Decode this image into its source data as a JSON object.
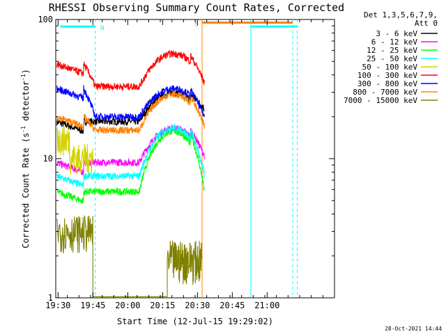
{
  "chart_data": {
    "type": "line",
    "title": "RHESSI Observing Summary Count Rates, Corrected",
    "xlabel": "Start Time (12-Jul-15 19:29:02)",
    "ylabel_pre": "Corrected Count Rate (s",
    "ylabel_sup1": "-1",
    "ylabel_mid": " detector",
    "ylabel_sup2": "-1",
    "ylabel_post": ")",
    "yscale": "log",
    "ylim": [
      1,
      100
    ],
    "xlim_minutes": [
      0,
      120
    ],
    "x_ticks": [
      "19:30",
      "19:45",
      "20:00",
      "20:15",
      "20:30",
      "20:45",
      "21:00"
    ],
    "y_ticks": [
      "1",
      "10",
      "100"
    ],
    "legend_header": [
      "Det 1,3,5,6,7,9,",
      "Att 0"
    ],
    "footer_date": "28-Oct-2021 14:44",
    "flags": [
      {
        "label": "N",
        "color": "#00ffff",
        "bars": [
          [
            2,
            17
          ],
          [
            84,
            104
          ]
        ],
        "value": 89,
        "dashed_at": [
          17,
          102,
          104
        ],
        "solid_at": [
          84
        ]
      },
      {
        "label": "S",
        "color": "#ff8000",
        "bars": [
          [
            63,
            102
          ]
        ],
        "value": 95,
        "dashed_at": [],
        "solid_at": [
          63
        ]
      }
    ],
    "series": [
      {
        "name": "3 - 6 keV",
        "color": "#000000",
        "kind": "flare",
        "pre": 18.5,
        "mid": 18.5,
        "peak": 29,
        "end": 23
      },
      {
        "name": "6 - 12 keV",
        "color": "#ff00ff",
        "kind": "flare",
        "pre": 9.4,
        "mid": 9.4,
        "peak": 16,
        "end": 10.5
      },
      {
        "name": "12 - 25 keV",
        "color": "#00ff00",
        "kind": "flare",
        "pre": 5.8,
        "mid": 5.8,
        "peak": 15,
        "end": 5.8
      },
      {
        "name": "25 - 50 keV",
        "color": "#00ffff",
        "kind": "flare",
        "pre": 7.5,
        "mid": 7.5,
        "peak": 16,
        "end": 7.5
      },
      {
        "name": "50 - 100 keV",
        "color": "#d2d200",
        "kind": "step",
        "pre": 12,
        "mid": null,
        "peak": null,
        "end": null
      },
      {
        "name": "100 - 300 keV",
        "color": "#ff0000",
        "kind": "flare",
        "pre": 48,
        "mid": 33,
        "peak": 55,
        "end": 35
      },
      {
        "name": "300 - 800 keV",
        "color": "#0000ff",
        "kind": "flare",
        "pre": 32,
        "mid": 20,
        "peak": 31,
        "end": 20
      },
      {
        "name": "800 - 7000 keV",
        "color": "#ff8000",
        "kind": "flare",
        "pre": 20,
        "mid": 16,
        "peak": 28,
        "end": 17
      },
      {
        "name": "7000 - 15000 keV",
        "color": "#808000",
        "kind": "sparse",
        "pre": 3,
        "mid": 1.9,
        "peak": null,
        "end": null
      }
    ]
  }
}
